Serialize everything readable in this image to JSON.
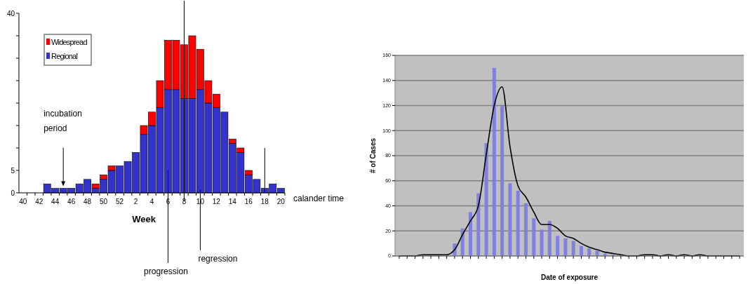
{
  "chart_data": [
    {
      "type": "bar",
      "stacked": true,
      "xlabel": "Week",
      "categories": [
        "40",
        null,
        "42",
        null,
        "44",
        null,
        "46",
        null,
        "48",
        null,
        "50",
        null,
        "52",
        null,
        "2",
        null,
        "4",
        null,
        "6",
        null,
        "8",
        null,
        "10",
        null,
        "12",
        null,
        "14",
        null,
        "16",
        null,
        "18",
        null,
        "20"
      ],
      "series": [
        {
          "name": "Regional",
          "color": "#3333cc",
          "values": [
            0,
            0,
            0,
            2,
            1,
            1,
            1,
            2,
            3,
            1,
            3,
            5,
            6,
            7,
            9,
            13,
            15,
            19,
            23,
            23,
            21,
            21,
            23,
            20,
            19,
            18,
            11,
            9,
            4,
            3,
            1,
            2,
            1
          ]
        },
        {
          "name": "Widespread",
          "color": "#ff0000",
          "values": [
            0,
            0,
            0,
            0,
            0,
            0,
            0,
            0,
            0,
            1,
            1,
            1,
            0,
            0,
            0,
            2,
            3,
            6,
            11,
            11,
            12,
            14,
            9,
            5,
            3,
            0,
            1,
            1,
            1,
            0,
            0,
            0,
            0
          ]
        }
      ],
      "ylim": [
        0,
        40
      ],
      "yticks": [
        0,
        5,
        {
          "value": 10,
          "label": null
        },
        {
          "value": 15,
          "label": null
        },
        {
          "value": 20,
          "label": null
        },
        {
          "value": 25,
          "label": null
        },
        {
          "value": 30,
          "label": null
        },
        {
          "value": 35,
          "label": null
        },
        40
      ],
      "legend": "top left",
      "grid": false,
      "annotations": [
        "calander time",
        "incubation period"
      ],
      "ref_lines": [
        {
          "axis": "x",
          "value": "8"
        },
        {
          "axis": "x",
          "value": "6",
          "label": "progression"
        },
        {
          "axis": "x",
          "value": "10",
          "label": "regression"
        },
        {
          "axis": "x",
          "value": "18"
        }
      ]
    },
    {
      "type": "bar",
      "xlabel": "Date of exposure",
      "ylabel": "# of Cases",
      "categories": [
        null,
        null,
        null,
        null,
        null,
        null,
        null,
        null,
        null,
        null,
        null,
        null,
        null,
        null,
        null,
        null,
        null,
        null,
        null,
        null,
        null,
        null,
        null,
        null,
        null,
        null,
        null,
        null,
        null,
        null,
        null,
        null,
        null,
        null,
        null,
        null,
        null,
        null,
        null,
        null,
        null,
        null,
        null,
        null
      ],
      "series": [
        {
          "type": "bar",
          "color": "#8080e0",
          "values": [
            0,
            0,
            0,
            0,
            0,
            0,
            0,
            10,
            22,
            35,
            50,
            90,
            150,
            120,
            58,
            52,
            42,
            30,
            21,
            28,
            16,
            14,
            12,
            8,
            6,
            4,
            2,
            1,
            0,
            0,
            0,
            0,
            0,
            0,
            0,
            0,
            0,
            0,
            0,
            0,
            0,
            0,
            0,
            0
          ]
        },
        {
          "type": "line",
          "color": "#000000",
          "values": [
            0,
            0,
            0,
            1,
            1,
            1,
            1,
            5,
            17,
            28,
            40,
            81,
            120,
            135,
            87,
            56,
            47,
            35,
            25,
            25,
            22,
            16,
            14,
            10,
            7,
            5,
            3,
            2,
            1,
            0,
            0,
            1,
            1,
            0,
            1,
            0,
            1,
            0,
            1,
            0,
            0,
            0,
            0,
            0
          ]
        }
      ],
      "ylim": [
        0,
        160
      ],
      "yticks": [
        0,
        20,
        40,
        60,
        80,
        100,
        120,
        140,
        160
      ],
      "grid": "y",
      "legend": false
    }
  ]
}
